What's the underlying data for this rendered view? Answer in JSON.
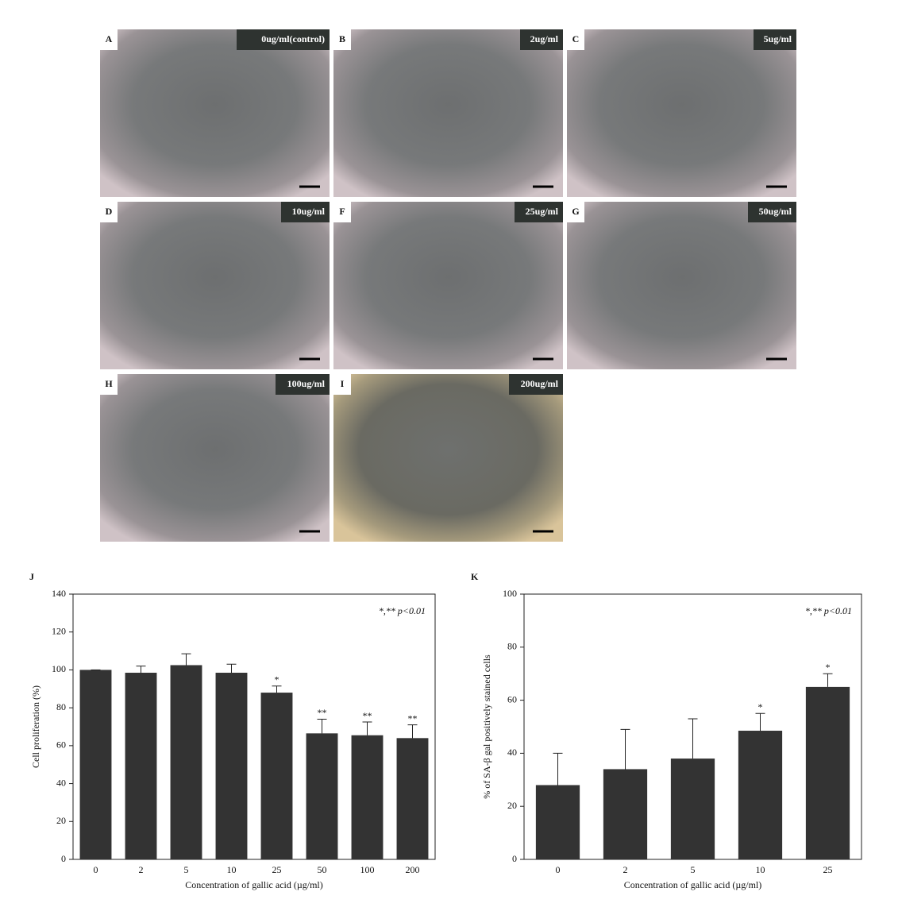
{
  "panels": [
    {
      "letter": "A",
      "label": "0ug/ml(control)"
    },
    {
      "letter": "B",
      "label": "2ug/ml"
    },
    {
      "letter": "C",
      "label": "5ug/ml"
    },
    {
      "letter": "D",
      "label": "10ug/ml"
    },
    {
      "letter": "F",
      "label": "25ug/ml"
    },
    {
      "letter": "G",
      "label": "50ug/ml"
    },
    {
      "letter": "H",
      "label": "100ug/ml"
    },
    {
      "letter": "I",
      "label": "200ug/ml"
    }
  ],
  "chart_data": [
    {
      "type": "bar",
      "panel": "J",
      "ylabel": "Cell proliferation (%)",
      "xlabel": "Concentration of gallic acid (µg/ml)",
      "annotation": "*,** p<0.01",
      "color": "#333333",
      "categories": [
        "0",
        "2",
        "5",
        "10",
        "25",
        "50",
        "100",
        "200"
      ],
      "values": [
        100,
        98.5,
        102.5,
        98.5,
        88,
        66.5,
        65.5,
        64
      ],
      "errors": [
        0,
        3.5,
        6,
        4.5,
        3.5,
        7.5,
        7,
        7
      ],
      "markers": [
        null,
        null,
        null,
        null,
        "*",
        "**",
        "**",
        "**"
      ],
      "ylim": [
        0,
        140
      ],
      "yticks": [
        0,
        20,
        40,
        60,
        80,
        100,
        120,
        140
      ]
    },
    {
      "type": "bar",
      "panel": "K",
      "ylabel": "% of SA-β gal positively stained cells",
      "xlabel": "Concentration of gallic acid (µg/ml)",
      "annotation": "*,** p<0.01",
      "color": "#333333",
      "categories": [
        "0",
        "2",
        "5",
        "10",
        "25"
      ],
      "values": [
        28,
        34,
        38,
        48.5,
        65
      ],
      "errors": [
        12,
        15,
        15,
        6.5,
        5
      ],
      "markers": [
        null,
        null,
        null,
        "*",
        "*"
      ],
      "ylim": [
        0,
        100
      ],
      "yticks": [
        0,
        20,
        40,
        60,
        80,
        100
      ]
    }
  ]
}
